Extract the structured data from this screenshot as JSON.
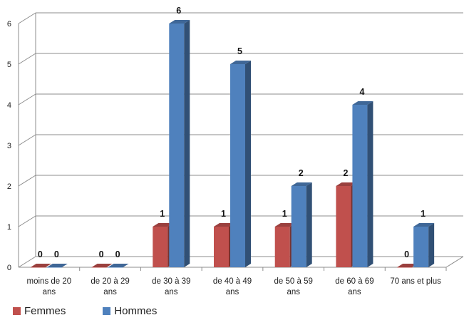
{
  "chart_data": {
    "type": "bar",
    "categories": [
      "moins de 20 ans",
      "de 20 à 29 ans",
      "de 30 à 39 ans",
      "de 40 à 49 ans",
      "de 50 à 59 ans",
      "de 60 à 69 ans",
      "70 ans et plus"
    ],
    "series": [
      {
        "name": "Femmes",
        "values": [
          0,
          0,
          1,
          1,
          1,
          2,
          0
        ],
        "color": "#c0504d"
      },
      {
        "name": "Hommes",
        "values": [
          0,
          0,
          6,
          5,
          2,
          4,
          1
        ],
        "color": "#4f81bd"
      }
    ],
    "ylim": [
      0,
      6
    ],
    "yticks": [
      "0",
      "1",
      "2",
      "3",
      "4",
      "5",
      "6"
    ],
    "title": "",
    "xlabel": "",
    "ylabel": "",
    "grid": true,
    "style": "3d-bar",
    "data_labels": true,
    "legend_position": "bottom-left"
  }
}
